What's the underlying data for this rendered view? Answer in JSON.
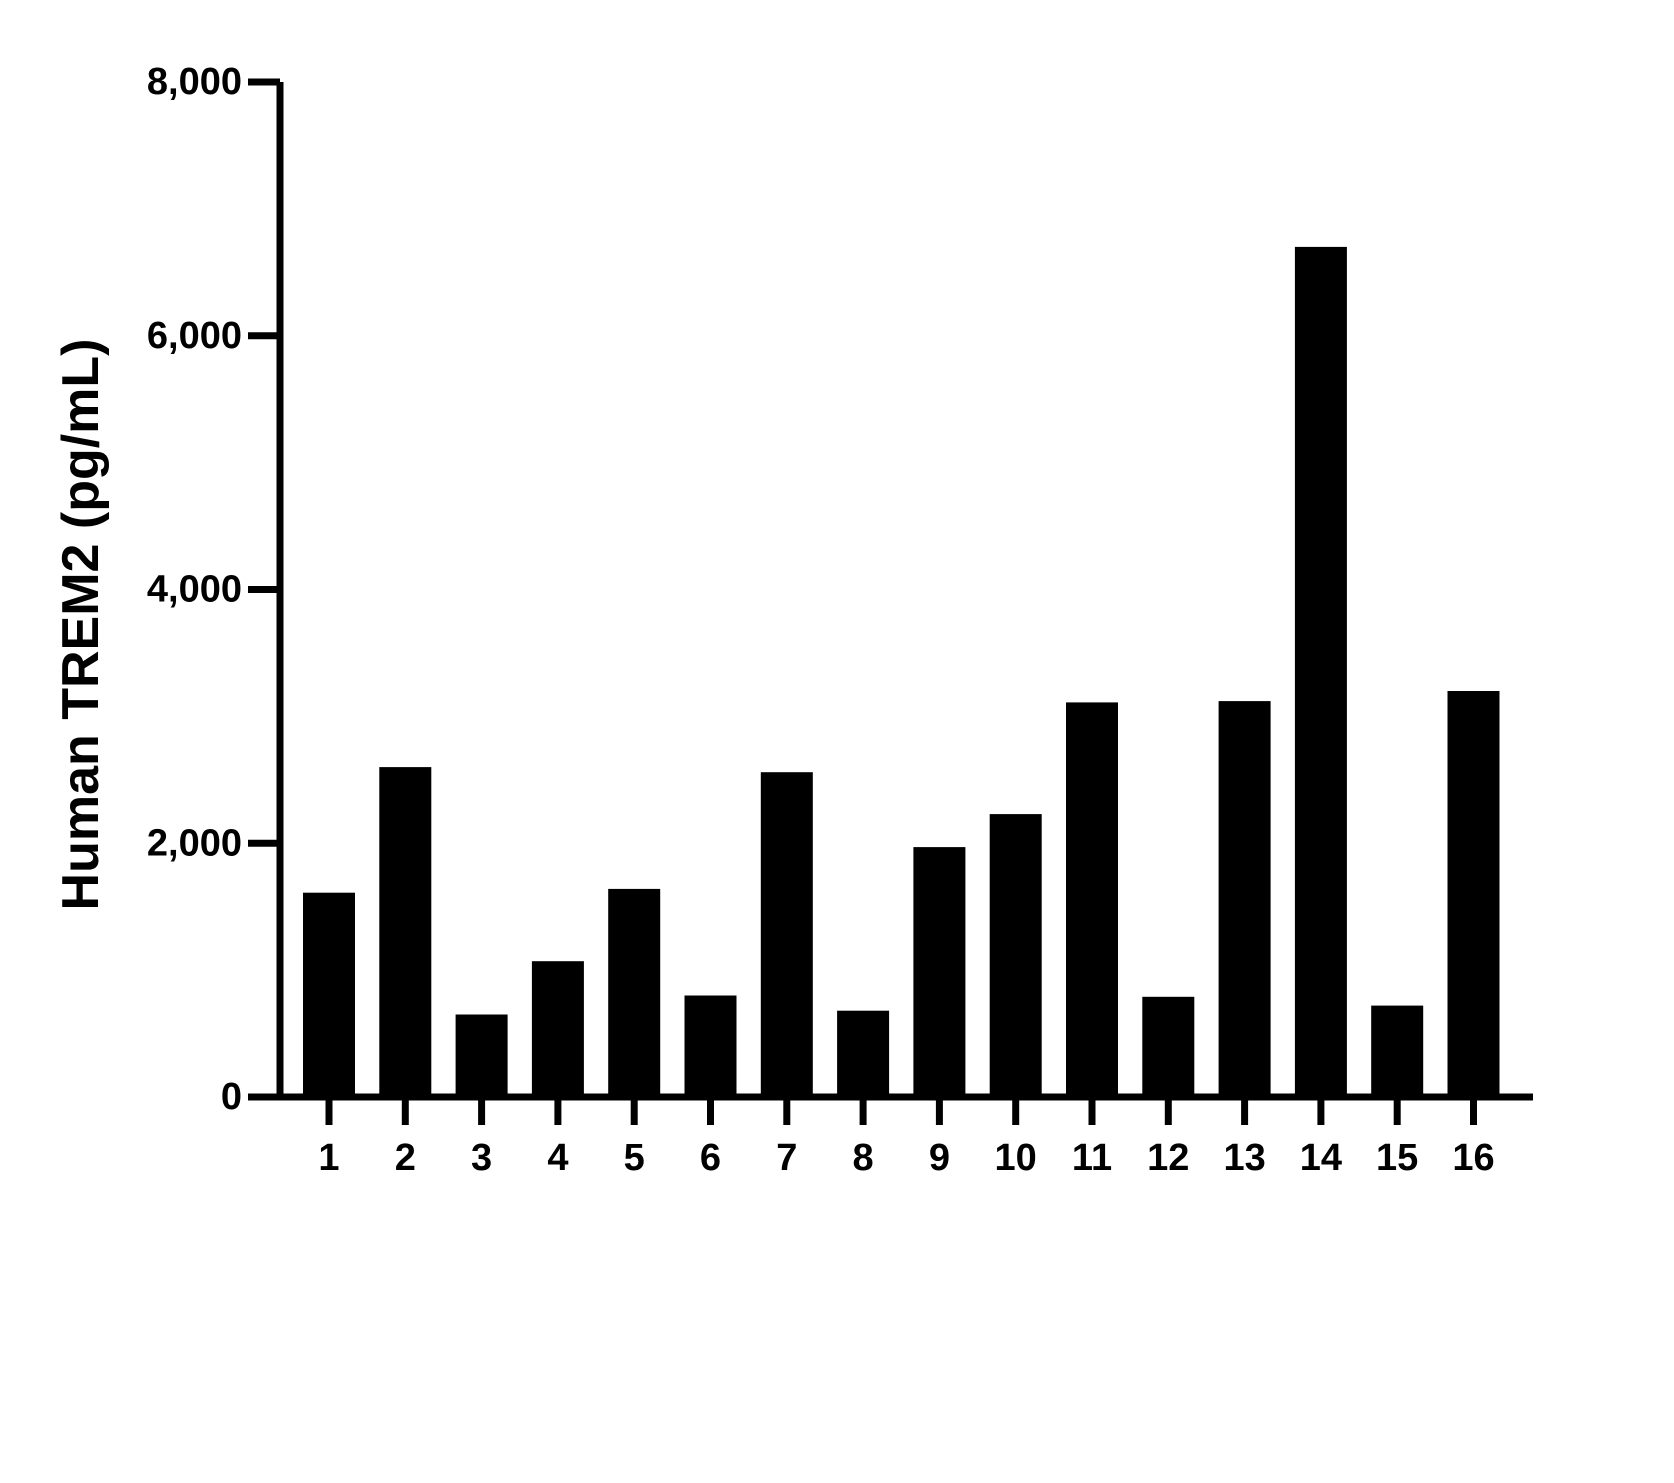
{
  "chart_data": {
    "type": "bar",
    "title": "",
    "xlabel": "",
    "ylabel": "Human TREM2 (pg/mL)",
    "ylim": [
      0,
      8000
    ],
    "yticks": [
      0,
      2000,
      4000,
      6000,
      8000
    ],
    "ytick_labels": [
      "0",
      "2,000",
      "4,000",
      "6,000",
      "8,000"
    ],
    "categories": [
      "1",
      "2",
      "3",
      "4",
      "5",
      "6",
      "7",
      "8",
      "9",
      "10",
      "11",
      "12",
      "13",
      "14",
      "15",
      "16"
    ],
    "values": [
      1610,
      2600,
      650,
      1070,
      1640,
      800,
      2560,
      680,
      1970,
      2230,
      3110,
      790,
      3120,
      6700,
      720,
      3200
    ],
    "grid": false,
    "legend": "none",
    "bar_color": "#000000",
    "axis_color": "#000000"
  }
}
